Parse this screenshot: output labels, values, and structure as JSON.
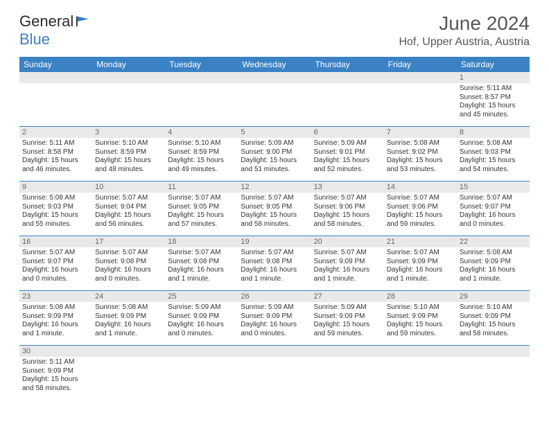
{
  "brand": {
    "part1": "General",
    "part2": "Blue"
  },
  "title": "June 2024",
  "location": "Hof, Upper Austria, Austria",
  "colors": {
    "header_bg": "#3b82c4",
    "header_text": "#ffffff",
    "daynum_bg": "#e9e9e9",
    "daynum_text": "#666666",
    "cell_text": "#333333",
    "rule": "#3b82c4",
    "brand_dark": "#2a2a2a",
    "brand_blue": "#3b7fc4"
  },
  "fonts": {
    "title_size": 28,
    "location_size": 16,
    "weekday_size": 12,
    "daynum_size": 11,
    "cell_size": 10
  },
  "weekdays": [
    "Sunday",
    "Monday",
    "Tuesday",
    "Wednesday",
    "Thursday",
    "Friday",
    "Saturday"
  ],
  "weeks": [
    [
      null,
      null,
      null,
      null,
      null,
      null,
      {
        "n": "1",
        "sr": "Sunrise: 5:11 AM",
        "ss": "Sunset: 8:57 PM",
        "d1": "Daylight: 15 hours",
        "d2": "and 45 minutes."
      }
    ],
    [
      {
        "n": "2",
        "sr": "Sunrise: 5:11 AM",
        "ss": "Sunset: 8:58 PM",
        "d1": "Daylight: 15 hours",
        "d2": "and 46 minutes."
      },
      {
        "n": "3",
        "sr": "Sunrise: 5:10 AM",
        "ss": "Sunset: 8:59 PM",
        "d1": "Daylight: 15 hours",
        "d2": "and 48 minutes."
      },
      {
        "n": "4",
        "sr": "Sunrise: 5:10 AM",
        "ss": "Sunset: 8:59 PM",
        "d1": "Daylight: 15 hours",
        "d2": "and 49 minutes."
      },
      {
        "n": "5",
        "sr": "Sunrise: 5:09 AM",
        "ss": "Sunset: 9:00 PM",
        "d1": "Daylight: 15 hours",
        "d2": "and 51 minutes."
      },
      {
        "n": "6",
        "sr": "Sunrise: 5:09 AM",
        "ss": "Sunset: 9:01 PM",
        "d1": "Daylight: 15 hours",
        "d2": "and 52 minutes."
      },
      {
        "n": "7",
        "sr": "Sunrise: 5:08 AM",
        "ss": "Sunset: 9:02 PM",
        "d1": "Daylight: 15 hours",
        "d2": "and 53 minutes."
      },
      {
        "n": "8",
        "sr": "Sunrise: 5:08 AM",
        "ss": "Sunset: 9:03 PM",
        "d1": "Daylight: 15 hours",
        "d2": "and 54 minutes."
      }
    ],
    [
      {
        "n": "9",
        "sr": "Sunrise: 5:08 AM",
        "ss": "Sunset: 9:03 PM",
        "d1": "Daylight: 15 hours",
        "d2": "and 55 minutes."
      },
      {
        "n": "10",
        "sr": "Sunrise: 5:07 AM",
        "ss": "Sunset: 9:04 PM",
        "d1": "Daylight: 15 hours",
        "d2": "and 56 minutes."
      },
      {
        "n": "11",
        "sr": "Sunrise: 5:07 AM",
        "ss": "Sunset: 9:05 PM",
        "d1": "Daylight: 15 hours",
        "d2": "and 57 minutes."
      },
      {
        "n": "12",
        "sr": "Sunrise: 5:07 AM",
        "ss": "Sunset: 9:05 PM",
        "d1": "Daylight: 15 hours",
        "d2": "and 58 minutes."
      },
      {
        "n": "13",
        "sr": "Sunrise: 5:07 AM",
        "ss": "Sunset: 9:06 PM",
        "d1": "Daylight: 15 hours",
        "d2": "and 58 minutes."
      },
      {
        "n": "14",
        "sr": "Sunrise: 5:07 AM",
        "ss": "Sunset: 9:06 PM",
        "d1": "Daylight: 15 hours",
        "d2": "and 59 minutes."
      },
      {
        "n": "15",
        "sr": "Sunrise: 5:07 AM",
        "ss": "Sunset: 9:07 PM",
        "d1": "Daylight: 16 hours",
        "d2": "and 0 minutes."
      }
    ],
    [
      {
        "n": "16",
        "sr": "Sunrise: 5:07 AM",
        "ss": "Sunset: 9:07 PM",
        "d1": "Daylight: 16 hours",
        "d2": "and 0 minutes."
      },
      {
        "n": "17",
        "sr": "Sunrise: 5:07 AM",
        "ss": "Sunset: 9:08 PM",
        "d1": "Daylight: 16 hours",
        "d2": "and 0 minutes."
      },
      {
        "n": "18",
        "sr": "Sunrise: 5:07 AM",
        "ss": "Sunset: 9:08 PM",
        "d1": "Daylight: 16 hours",
        "d2": "and 1 minute."
      },
      {
        "n": "19",
        "sr": "Sunrise: 5:07 AM",
        "ss": "Sunset: 9:08 PM",
        "d1": "Daylight: 16 hours",
        "d2": "and 1 minute."
      },
      {
        "n": "20",
        "sr": "Sunrise: 5:07 AM",
        "ss": "Sunset: 9:09 PM",
        "d1": "Daylight: 16 hours",
        "d2": "and 1 minute."
      },
      {
        "n": "21",
        "sr": "Sunrise: 5:07 AM",
        "ss": "Sunset: 9:09 PM",
        "d1": "Daylight: 16 hours",
        "d2": "and 1 minute."
      },
      {
        "n": "22",
        "sr": "Sunrise: 5:08 AM",
        "ss": "Sunset: 9:09 PM",
        "d1": "Daylight: 16 hours",
        "d2": "and 1 minute."
      }
    ],
    [
      {
        "n": "23",
        "sr": "Sunrise: 5:08 AM",
        "ss": "Sunset: 9:09 PM",
        "d1": "Daylight: 16 hours",
        "d2": "and 1 minute."
      },
      {
        "n": "24",
        "sr": "Sunrise: 5:08 AM",
        "ss": "Sunset: 9:09 PM",
        "d1": "Daylight: 16 hours",
        "d2": "and 1 minute."
      },
      {
        "n": "25",
        "sr": "Sunrise: 5:09 AM",
        "ss": "Sunset: 9:09 PM",
        "d1": "Daylight: 16 hours",
        "d2": "and 0 minutes."
      },
      {
        "n": "26",
        "sr": "Sunrise: 5:09 AM",
        "ss": "Sunset: 9:09 PM",
        "d1": "Daylight: 16 hours",
        "d2": "and 0 minutes."
      },
      {
        "n": "27",
        "sr": "Sunrise: 5:09 AM",
        "ss": "Sunset: 9:09 PM",
        "d1": "Daylight: 15 hours",
        "d2": "and 59 minutes."
      },
      {
        "n": "28",
        "sr": "Sunrise: 5:10 AM",
        "ss": "Sunset: 9:09 PM",
        "d1": "Daylight: 15 hours",
        "d2": "and 59 minutes."
      },
      {
        "n": "29",
        "sr": "Sunrise: 5:10 AM",
        "ss": "Sunset: 9:09 PM",
        "d1": "Daylight: 15 hours",
        "d2": "and 58 minutes."
      }
    ],
    [
      {
        "n": "30",
        "sr": "Sunrise: 5:11 AM",
        "ss": "Sunset: 9:09 PM",
        "d1": "Daylight: 15 hours",
        "d2": "and 58 minutes."
      },
      null,
      null,
      null,
      null,
      null,
      null
    ]
  ]
}
